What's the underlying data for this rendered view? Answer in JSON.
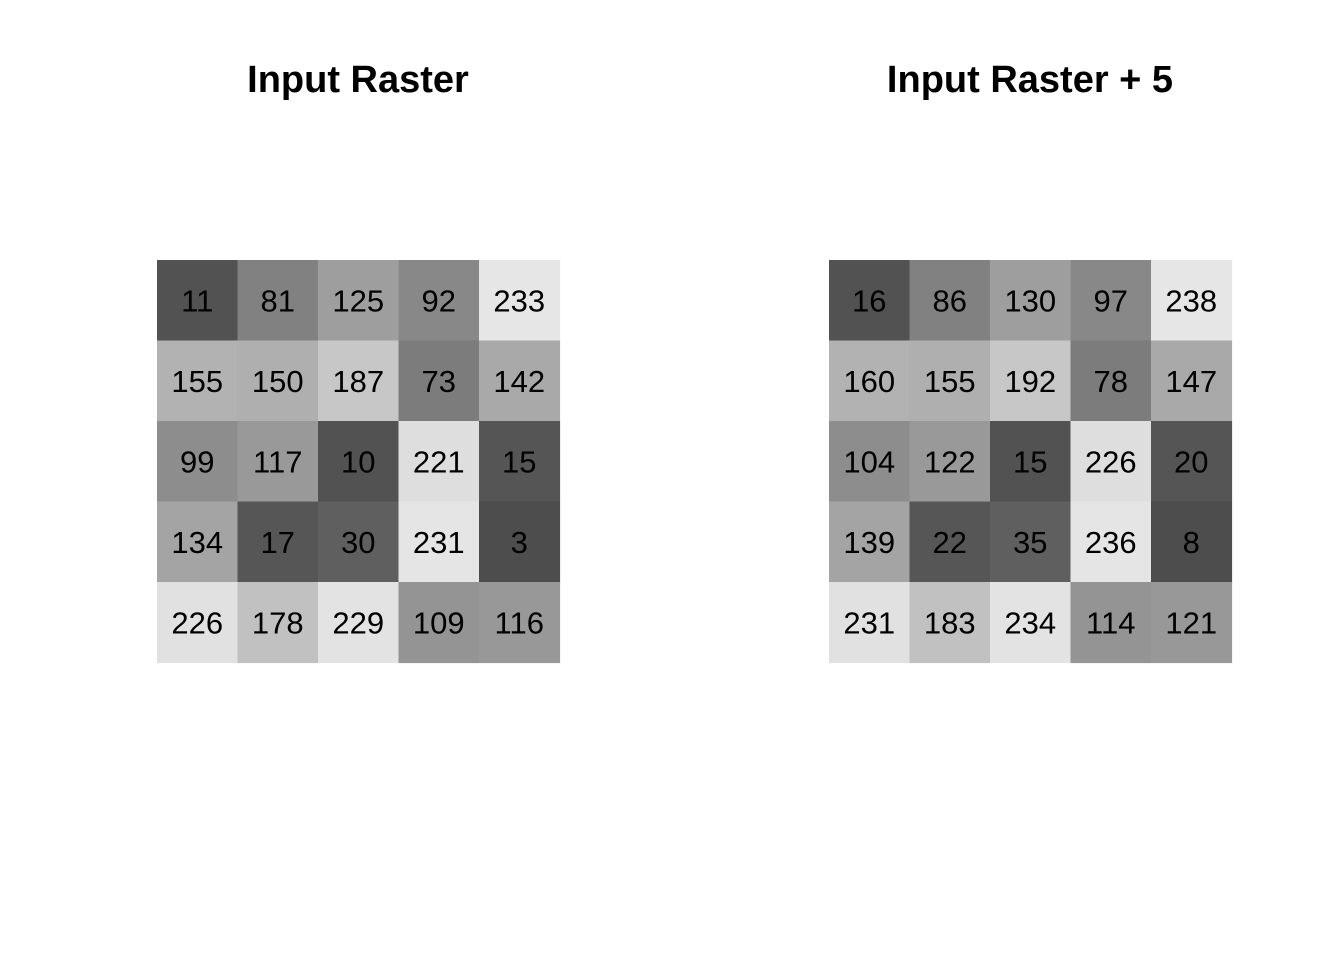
{
  "chart_data": [
    {
      "type": "heatmap",
      "title": "Input Raster",
      "rows": 5,
      "cols": 5,
      "values": [
        [
          11,
          81,
          125,
          92,
          233
        ],
        [
          155,
          150,
          187,
          73,
          142
        ],
        [
          99,
          117,
          10,
          221,
          15
        ],
        [
          134,
          17,
          30,
          231,
          3
        ],
        [
          226,
          178,
          229,
          109,
          116
        ]
      ],
      "colormap": "grayscale",
      "color_low": "#4d4d4d",
      "color_high": "#e6e6e6",
      "value_range": [
        3,
        233
      ],
      "cell_labels": true,
      "grid": false,
      "axes": false
    },
    {
      "type": "heatmap",
      "title": "Input Raster + 5",
      "rows": 5,
      "cols": 5,
      "values": [
        [
          16,
          86,
          130,
          97,
          238
        ],
        [
          160,
          155,
          192,
          78,
          147
        ],
        [
          104,
          122,
          15,
          226,
          20
        ],
        [
          139,
          22,
          35,
          236,
          8
        ],
        [
          231,
          183,
          234,
          114,
          121
        ]
      ],
      "colormap": "grayscale",
      "color_low": "#4d4d4d",
      "color_high": "#e6e6e6",
      "value_range": [
        8,
        238
      ],
      "cell_labels": true,
      "grid": false,
      "axes": false
    }
  ]
}
